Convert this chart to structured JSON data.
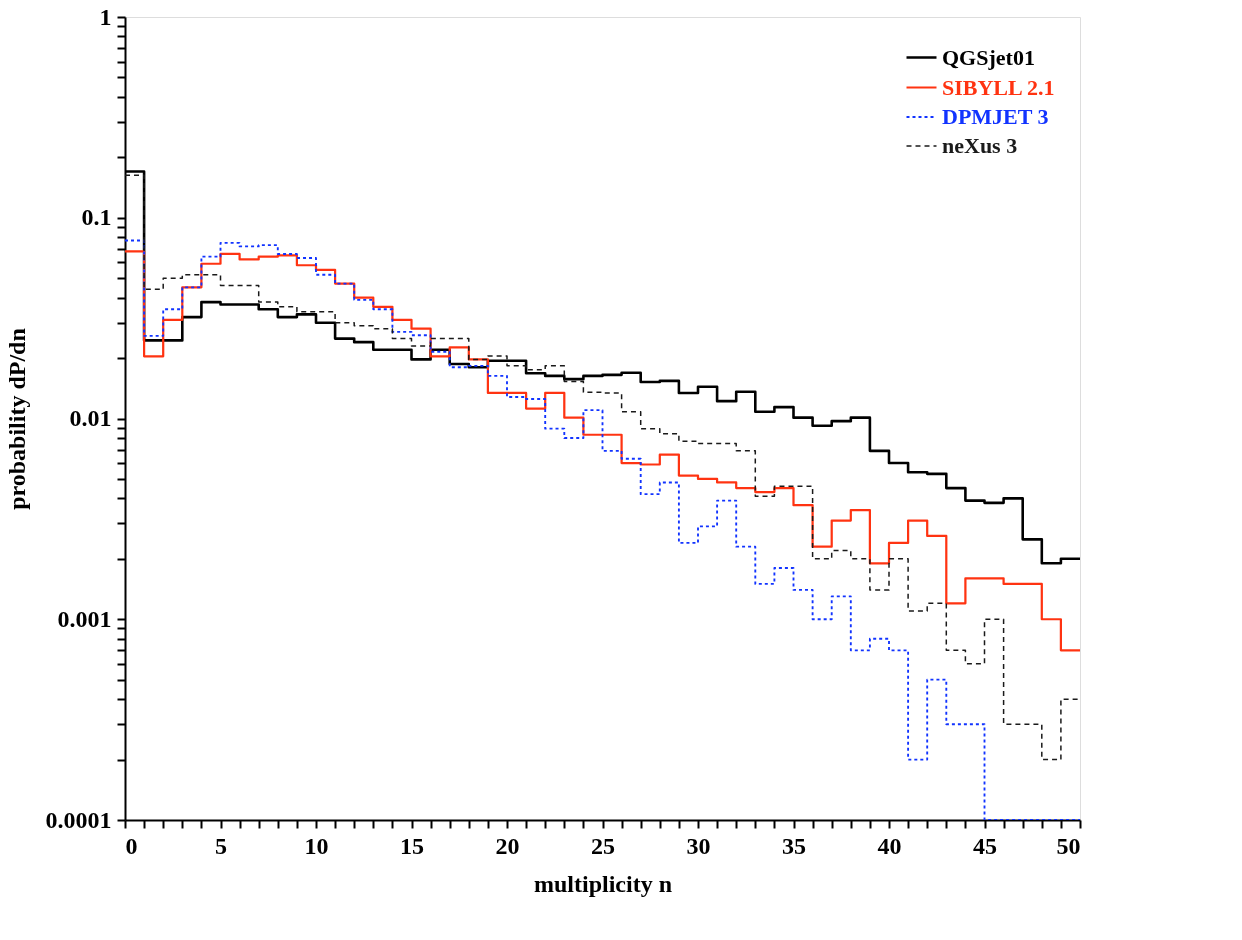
{
  "chart_data": {
    "type": "histogram",
    "xlabel": "multiplicity n",
    "ylabel": "probability dP/dn",
    "log": "y",
    "legend": "top right",
    "grid": false,
    "bins": [
      0,
      1,
      2,
      3,
      4,
      5,
      6,
      7,
      8,
      9,
      10,
      11,
      12,
      13,
      14,
      15,
      16,
      17,
      18,
      19,
      20,
      21,
      22,
      23,
      24,
      25,
      26,
      27,
      28,
      29,
      30,
      31,
      32,
      33,
      34,
      35,
      36,
      37,
      38,
      39,
      40,
      41,
      42,
      43,
      44,
      45,
      46,
      47,
      48,
      49,
      50
    ],
    "xlim": [
      0,
      50
    ],
    "xticks": [
      0,
      {
        "value": 1,
        "label": null
      },
      {
        "value": 2,
        "label": null
      },
      {
        "value": 3,
        "label": null
      },
      {
        "value": 4,
        "label": null
      },
      5,
      {
        "value": 6,
        "label": null
      },
      {
        "value": 7,
        "label": null
      },
      {
        "value": 8,
        "label": null
      },
      {
        "value": 9,
        "label": null
      },
      10,
      {
        "value": 11,
        "label": null
      },
      {
        "value": 12,
        "label": null
      },
      {
        "value": 13,
        "label": null
      },
      {
        "value": 14,
        "label": null
      },
      15,
      {
        "value": 16,
        "label": null
      },
      {
        "value": 17,
        "label": null
      },
      {
        "value": 18,
        "label": null
      },
      {
        "value": 19,
        "label": null
      },
      20,
      {
        "value": 21,
        "label": null
      },
      {
        "value": 22,
        "label": null
      },
      {
        "value": 23,
        "label": null
      },
      {
        "value": 24,
        "label": null
      },
      25,
      {
        "value": 26,
        "label": null
      },
      {
        "value": 27,
        "label": null
      },
      {
        "value": 28,
        "label": null
      },
      {
        "value": 29,
        "label": null
      },
      30,
      {
        "value": 31,
        "label": null
      },
      {
        "value": 32,
        "label": null
      },
      {
        "value": 33,
        "label": null
      },
      {
        "value": 34,
        "label": null
      },
      35,
      {
        "value": 36,
        "label": null
      },
      {
        "value": 37,
        "label": null
      },
      {
        "value": 38,
        "label": null
      },
      {
        "value": 39,
        "label": null
      },
      40,
      {
        "value": 41,
        "label": null
      },
      {
        "value": 42,
        "label": null
      },
      {
        "value": 43,
        "label": null
      },
      {
        "value": 44,
        "label": null
      },
      45,
      {
        "value": 46,
        "label": null
      },
      {
        "value": 47,
        "label": null
      },
      {
        "value": 48,
        "label": null
      },
      {
        "value": 49,
        "label": null
      },
      50
    ],
    "ylim": [
      0.0001,
      1
    ],
    "yticks": [
      0.0001,
      {
        "value": 0.0002,
        "label": null
      },
      {
        "value": 0.0003,
        "label": null
      },
      {
        "value": 0.0004,
        "label": null
      },
      {
        "value": 0.0005,
        "label": null
      },
      {
        "value": 0.0006,
        "label": null
      },
      {
        "value": 0.0007,
        "label": null
      },
      {
        "value": 0.0008,
        "label": null
      },
      {
        "value": 0.0009,
        "label": null
      },
      0.001,
      {
        "value": 0.002,
        "label": null
      },
      {
        "value": 0.003,
        "label": null
      },
      {
        "value": 0.004,
        "label": null
      },
      {
        "value": 0.005,
        "label": null
      },
      {
        "value": 0.006,
        "label": null
      },
      {
        "value": 0.007,
        "label": null
      },
      {
        "value": 0.008,
        "label": null
      },
      {
        "value": 0.009,
        "label": null
      },
      0.01,
      {
        "value": 0.02,
        "label": null
      },
      {
        "value": 0.03,
        "label": null
      },
      {
        "value": 0.04,
        "label": null
      },
      {
        "value": 0.05,
        "label": null
      },
      {
        "value": 0.06,
        "label": null
      },
      {
        "value": 0.07,
        "label": null
      },
      {
        "value": 0.08,
        "label": null
      },
      {
        "value": 0.09,
        "label": null
      },
      0.1,
      {
        "value": 0.2,
        "label": null
      },
      {
        "value": 0.3,
        "label": null
      },
      {
        "value": 0.4,
        "label": null
      },
      {
        "value": 0.5,
        "label": null
      },
      {
        "value": 0.6,
        "label": null
      },
      {
        "value": 0.7,
        "label": null
      },
      {
        "value": 0.8,
        "label": null
      },
      {
        "value": 0.9,
        "label": null
      },
      1
    ],
    "series": [
      {
        "name": "QGSjet01",
        "color": "#000000",
        "line_style": "solid",
        "values": [
          0.17,
          0.0245,
          0.0245,
          0.032,
          0.038,
          0.037,
          0.037,
          0.035,
          0.032,
          0.033,
          0.03,
          0.025,
          0.024,
          0.022,
          0.022,
          0.0197,
          0.022,
          0.0187,
          0.018,
          0.0194,
          0.0194,
          0.0168,
          0.0163,
          0.0157,
          0.0163,
          0.0165,
          0.0169,
          0.0152,
          0.0154,
          0.0134,
          0.0144,
          0.0122,
          0.0136,
          0.0108,
          0.0114,
          0.0101,
          0.0092,
          0.0097,
          0.0101,
          0.0069,
          0.006,
          0.0054,
          0.0053,
          0.0045,
          0.0039,
          0.0038,
          0.004,
          0.0025,
          0.0019,
          0.002
        ]
      },
      {
        "name": "SIBYLL 2.1",
        "color": "#ff3311",
        "line_style": "solid",
        "values": [
          0.068,
          0.0204,
          0.031,
          0.045,
          0.059,
          0.066,
          0.062,
          0.064,
          0.065,
          0.058,
          0.055,
          0.047,
          0.04,
          0.036,
          0.031,
          0.028,
          0.0204,
          0.0226,
          0.0197,
          0.0134,
          0.0134,
          0.0112,
          0.0134,
          0.0101,
          0.0083,
          0.0083,
          0.006,
          0.0059,
          0.0066,
          0.0052,
          0.005,
          0.0048,
          0.0045,
          0.0043,
          0.0045,
          0.0037,
          0.0023,
          0.0031,
          0.0035,
          0.0019,
          0.0024,
          0.0031,
          0.0026,
          0.0012,
          0.0016,
          0.0016,
          0.0015,
          0.0015,
          0.001,
          0.0007
        ]
      },
      {
        "name": "DPMJET 3",
        "color": "#1133ff",
        "line_style": "dotted",
        "values": [
          0.077,
          0.0258,
          0.035,
          0.045,
          0.064,
          0.075,
          0.072,
          0.073,
          0.066,
          0.063,
          0.052,
          0.047,
          0.039,
          0.035,
          0.027,
          0.026,
          0.0215,
          0.018,
          0.0183,
          0.0163,
          0.0128,
          0.0125,
          0.0089,
          0.008,
          0.011,
          0.0069,
          0.0063,
          0.0042,
          0.0048,
          0.0024,
          0.0029,
          0.0039,
          0.0023,
          0.0015,
          0.0018,
          0.0014,
          0.001,
          0.0013,
          0.0007,
          0.0008,
          0.0007,
          0.0002,
          0.0005,
          0.0003,
          0.0003,
          0.0001,
          0.0001,
          0.0001,
          0.0001,
          0.0001
        ]
      },
      {
        "name": "neXus 3",
        "color": "#1a1a1a",
        "line_style": "dashed",
        "values": [
          0.163,
          0.044,
          0.05,
          0.052,
          0.052,
          0.046,
          0.046,
          0.038,
          0.036,
          0.034,
          0.034,
          0.03,
          0.029,
          0.028,
          0.025,
          0.023,
          0.025,
          0.025,
          0.0197,
          0.0205,
          0.0183,
          0.0175,
          0.0183,
          0.0153,
          0.0135,
          0.0134,
          0.0108,
          0.0089,
          0.0084,
          0.0077,
          0.0075,
          0.0075,
          0.0069,
          0.0041,
          0.0046,
          0.0046,
          0.002,
          0.0022,
          0.002,
          0.0014,
          0.002,
          0.0011,
          0.0012,
          0.0007,
          0.0006,
          0.001,
          0.0003,
          0.0003,
          0.0002,
          0.0004
        ]
      }
    ]
  }
}
